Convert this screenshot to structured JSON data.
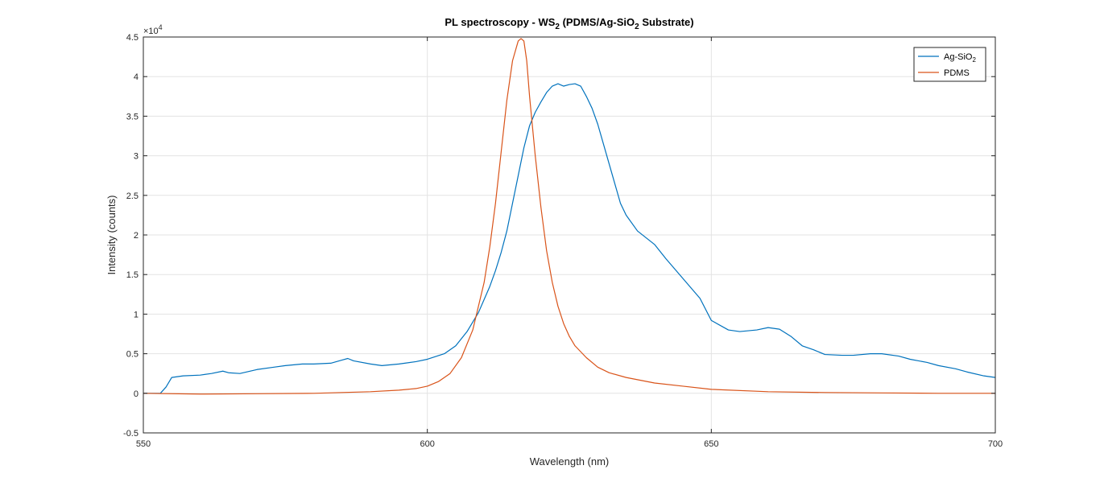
{
  "chart_data": {
    "type": "line",
    "title_parts": {
      "pre": "PL spectroscopy - WS",
      "sub1": "2",
      "mid": " (PDMS/Ag-SiO",
      "sub2": "2",
      "post": " Substrate)"
    },
    "xlabel": "Wavelength (nm)",
    "ylabel": "Intensity (counts)",
    "xlim": [
      550,
      700
    ],
    "ylim": [
      -5000,
      45000
    ],
    "xticks": [
      550,
      600,
      650,
      700
    ],
    "xtick_labels": [
      "550",
      "600",
      "650",
      "700"
    ],
    "yticks": [
      -5000,
      0,
      5000,
      10000,
      15000,
      20000,
      25000,
      30000,
      35000,
      40000,
      45000
    ],
    "ytick_labels": [
      "-0.5",
      "0",
      "0.5",
      "1",
      "1.5",
      "2",
      "2.5",
      "3",
      "3.5",
      "4",
      "4.5"
    ],
    "y_exponent": {
      "base": "×10",
      "power": "4"
    },
    "grid": true,
    "legend_position": "top-right",
    "series": [
      {
        "name_base": "Ag-SiO",
        "name_sub": "2",
        "color": "#0072BD",
        "x": [
          550,
          553,
          554,
          555,
          557,
          560,
          562,
          564,
          565,
          567,
          570,
          573,
          575,
          578,
          580,
          583,
          585,
          586,
          587,
          590,
          592,
          595,
          598,
          600,
          603,
          605,
          607,
          609,
          611,
          612,
          613,
          614,
          615,
          616,
          617,
          618,
          619,
          620,
          621,
          622,
          623,
          624,
          625,
          626,
          627,
          628,
          629,
          630,
          631,
          632,
          633,
          634,
          635,
          637,
          640,
          642,
          645,
          648,
          650,
          653,
          655,
          658,
          660,
          662,
          664,
          666,
          668,
          670,
          673,
          675,
          678,
          680,
          683,
          685,
          688,
          690,
          693,
          695,
          698,
          700
        ],
        "y": [
          0,
          0,
          800,
          2000,
          2200,
          2300,
          2500,
          2800,
          2600,
          2500,
          3000,
          3300,
          3500,
          3700,
          3700,
          3800,
          4200,
          4400,
          4100,
          3700,
          3500,
          3700,
          4000,
          4300,
          5000,
          6000,
          7800,
          10200,
          13500,
          15500,
          17800,
          20500,
          24000,
          27500,
          31000,
          33800,
          35500,
          36800,
          38000,
          38800,
          39100,
          38800,
          39000,
          39100,
          38800,
          37500,
          36000,
          34000,
          31500,
          29000,
          26500,
          24000,
          22500,
          20500,
          18800,
          17000,
          14500,
          12000,
          9200,
          8000,
          7800,
          8000,
          8300,
          8100,
          7200,
          6000,
          5500,
          4900,
          4800,
          4800,
          5000,
          5000,
          4700,
          4300,
          3900,
          3500,
          3100,
          2700,
          2200,
          2000
        ]
      },
      {
        "name_base": "PDMS",
        "name_sub": "",
        "color": "#D95319",
        "x": [
          550,
          560,
          570,
          580,
          590,
          595,
          598,
          600,
          602,
          604,
          606,
          608,
          610,
          611,
          612,
          613,
          614,
          615,
          616,
          616.5,
          617,
          617.5,
          618,
          619,
          620,
          621,
          622,
          623,
          624,
          625,
          626,
          628,
          630,
          632,
          635,
          640,
          645,
          650,
          660,
          670,
          680,
          690,
          700
        ],
        "y": [
          0,
          -100,
          -50,
          0,
          200,
          400,
          600,
          900,
          1500,
          2500,
          4500,
          8000,
          14000,
          18500,
          24000,
          30500,
          37000,
          42000,
          44500,
          44800,
          44500,
          42000,
          37500,
          30000,
          23500,
          18000,
          14000,
          11000,
          8800,
          7200,
          6000,
          4500,
          3300,
          2600,
          2000,
          1300,
          900,
          500,
          200,
          100,
          50,
          0,
          0
        ]
      }
    ]
  }
}
